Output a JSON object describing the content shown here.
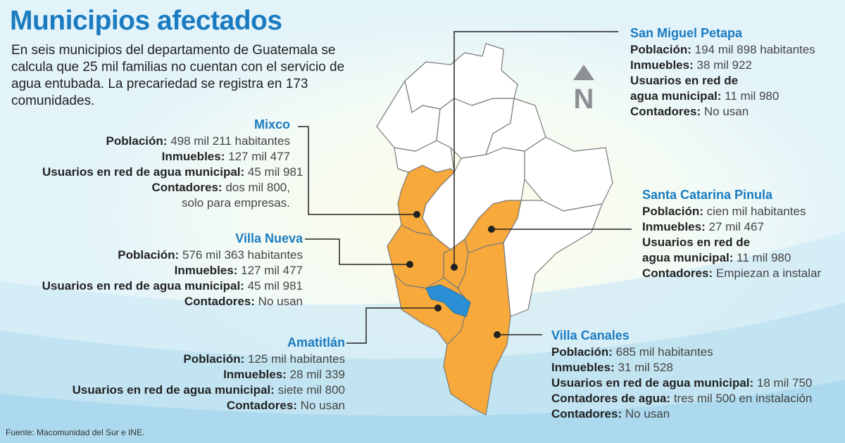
{
  "title": "Municipios afectados",
  "intro": "En seis municipios del departamento de Guatemala se calcula que 25 mil familias no cuentan con el servicio de agua entubada. La precariedad se registra en 173 comunidades.",
  "north_label": "N",
  "source": "Fuente: Macomunidad del Sur e INE.",
  "colors": {
    "affected": "#f7a93b",
    "unaffected": "#ffffff",
    "border": "#7a7a7a",
    "lake": "#2b8fd6",
    "title": "#1a7bc0"
  },
  "municipalities": [
    {
      "name": "Mixco",
      "rows": [
        {
          "k": "Población:",
          "v": "498 mil 211 habitantes"
        },
        {
          "k": "Inmuebles:",
          "v": "127 mil 477"
        },
        {
          "k": "Usuarios en red de agua municipal:",
          "v": "45 mil 981"
        },
        {
          "k": "Contadores:",
          "v": "dos mil 800,"
        },
        {
          "k": "",
          "v": "solo para empresas."
        }
      ]
    },
    {
      "name": "Villa Nueva",
      "rows": [
        {
          "k": "Población:",
          "v": "576 mil 363 habitantes"
        },
        {
          "k": "Inmuebles:",
          "v": "127 mil 477"
        },
        {
          "k": "Usuarios en red de agua municipal:",
          "v": "45 mil 981"
        },
        {
          "k": "Contadores:",
          "v": "No usan"
        }
      ]
    },
    {
      "name": "Amatitlán",
      "rows": [
        {
          "k": "Población:",
          "v": "125 mil habitantes"
        },
        {
          "k": "Inmuebles:",
          "v": "28 mil 339"
        },
        {
          "k": "Usuarios en red de agua municipal:",
          "v": "siete mil 800"
        },
        {
          "k": "Contadores:",
          "v": "No usan"
        }
      ]
    },
    {
      "name": "San Miguel Petapa",
      "rows": [
        {
          "k": "Población:",
          "v": "194 mil 898 habitantes"
        },
        {
          "k": "Inmuebles:",
          "v": "38 mil 922"
        },
        {
          "k": "Usuarios en red de",
          "v": ""
        },
        {
          "k": "agua municipal:",
          "v": "11 mil 980"
        },
        {
          "k": "Contadores:",
          "v": "No usan"
        }
      ]
    },
    {
      "name": "Santa Catarina Pinula",
      "rows": [
        {
          "k": "Población:",
          "v": "cien mil habitantes"
        },
        {
          "k": "Inmuebles:",
          "v": "27 mil 467"
        },
        {
          "k": "Usuarios en red de",
          "v": ""
        },
        {
          "k": "agua municipal:",
          "v": "11 mil 980"
        },
        {
          "k": "Contadores:",
          "v": "Empiezan a instalar"
        }
      ]
    },
    {
      "name": "Villa Canales",
      "rows": [
        {
          "k": "Población:",
          "v": "685 mil habitantes"
        },
        {
          "k": "Inmuebles:",
          "v": "31 mil 528"
        },
        {
          "k": "Usuarios en red de agua municipal:",
          "v": "18 mil 750"
        },
        {
          "k": "Contadores de agua:",
          "v": "tres mil 500 en instalación"
        },
        {
          "k": "Contadores:",
          "v": "No usan"
        }
      ]
    }
  ]
}
